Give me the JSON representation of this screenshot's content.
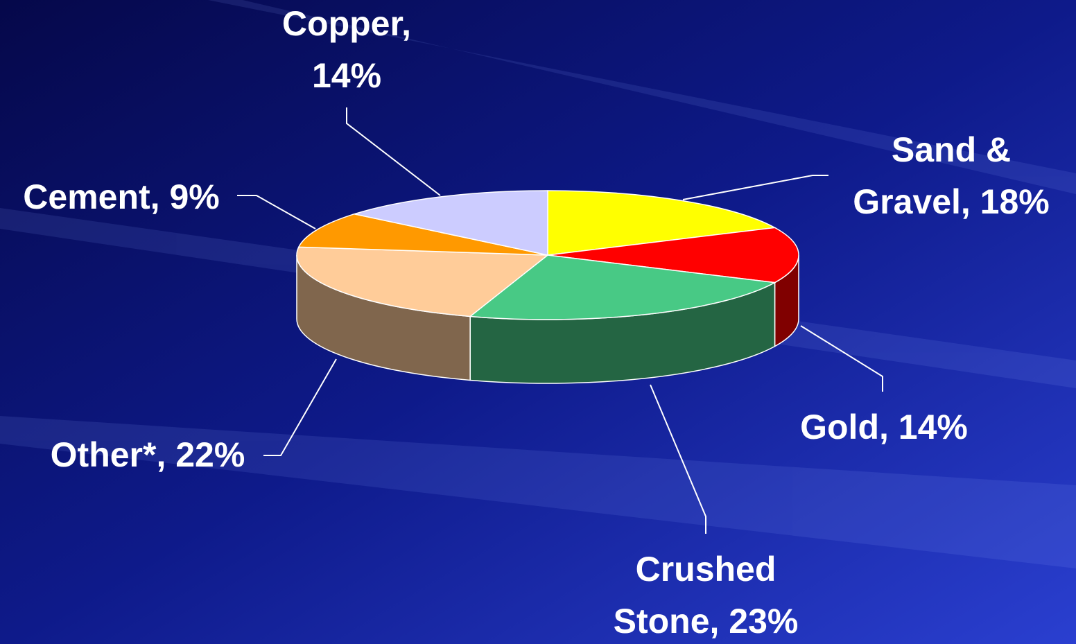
{
  "chart_data": {
    "type": "pie",
    "values": [
      18,
      14,
      23,
      22,
      9,
      14
    ],
    "value_labels": [
      [
        "Sand &",
        "Gravel, 18%"
      ],
      [
        "Gold, 14%"
      ],
      [
        "Crushed",
        "Stone, 23%"
      ],
      [
        "Other*, 22%"
      ],
      [
        "Cement, 9%"
      ],
      [
        "Copper,",
        "14%"
      ]
    ],
    "colors": [
      "#ffff00",
      "#ff0000",
      "#48c985",
      "#ffcc99",
      "#ff9900",
      "#ccccff"
    ]
  }
}
